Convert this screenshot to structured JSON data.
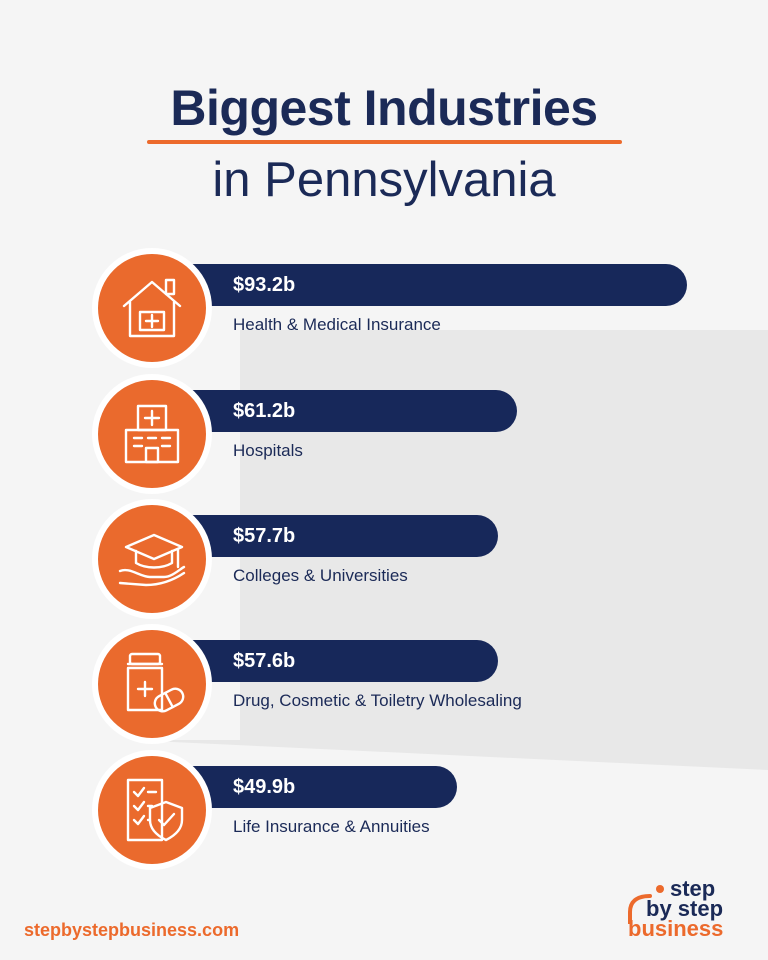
{
  "title": {
    "line1": "Biggest Industries",
    "line2": "in Pennsylvania"
  },
  "colors": {
    "navy": "#17285a",
    "orange": "#ea6a2d",
    "background": "#f5f5f5"
  },
  "chart_data": {
    "type": "bar",
    "orientation": "horizontal",
    "unit": "billion USD",
    "categories": [
      "Health & Medical Insurance",
      "Hospitals",
      "Colleges & Universities",
      "Drug, Cosmetic & Toiletry Wholesaling",
      "Life Insurance & Annuities"
    ],
    "values": [
      93.2,
      61.2,
      57.7,
      57.6,
      49.9
    ],
    "value_labels": [
      "$93.2b",
      "$61.2b",
      "$57.7b",
      "$57.6b",
      "$49.9b"
    ],
    "icons": [
      "house-medical-icon",
      "hospital-building-icon",
      "graduation-cap-hand-icon",
      "medicine-bottle-pill-icon",
      "document-shield-icon"
    ],
    "grid": false,
    "legend": "none"
  },
  "footer": {
    "website": "stepbystepbusiness.com",
    "logo": {
      "line1": "step",
      "line2": "by step",
      "line3": "business"
    }
  }
}
